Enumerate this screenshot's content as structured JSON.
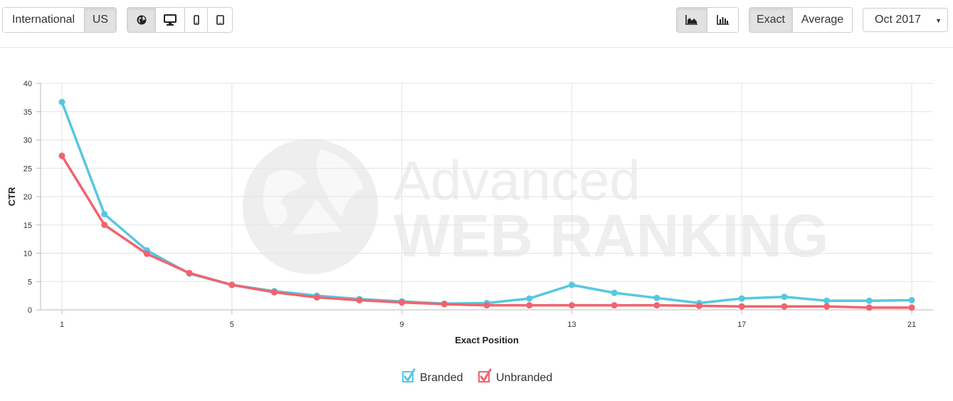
{
  "toolbar": {
    "region": {
      "international": "International",
      "us": "US",
      "selected": "US"
    },
    "devices": [
      "globe-icon",
      "desktop-icon",
      "mobile-icon",
      "tablet-icon"
    ],
    "device_selected": "globe-icon",
    "chart_types": [
      "area-chart-icon",
      "bar-chart-icon"
    ],
    "chart_type_selected": "area-chart-icon",
    "mode": {
      "exact": "Exact",
      "average": "Average",
      "selected": "Exact"
    },
    "period": "Oct 2017"
  },
  "watermark": {
    "line1": "Advanced",
    "line2": "WEB RANKING"
  },
  "chart_data": {
    "type": "line",
    "xlabel": "Exact Position",
    "ylabel": "CTR",
    "x": [
      1,
      2,
      3,
      4,
      5,
      6,
      7,
      8,
      9,
      10,
      11,
      12,
      13,
      14,
      15,
      16,
      17,
      18,
      19,
      20,
      21
    ],
    "xticks": [
      1,
      5,
      9,
      13,
      17,
      21
    ],
    "ylim": [
      0,
      40
    ],
    "yticks": [
      0,
      5,
      10,
      15,
      20,
      25,
      30,
      35,
      40
    ],
    "grid": true,
    "legend_position": "bottom",
    "series": [
      {
        "name": "Branded",
        "color": "#56c8e2",
        "values": [
          36.7,
          16.9,
          10.5,
          6.4,
          4.4,
          3.3,
          2.5,
          1.9,
          1.5,
          1.1,
          1.2,
          2.0,
          4.4,
          3.0,
          2.1,
          1.2,
          2.0,
          2.3,
          1.6,
          1.6,
          1.7
        ]
      },
      {
        "name": "Unbranded",
        "color": "#f0646e",
        "values": [
          27.2,
          15.0,
          9.9,
          6.5,
          4.4,
          3.1,
          2.2,
          1.7,
          1.3,
          1.0,
          0.8,
          0.8,
          0.8,
          0.8,
          0.8,
          0.7,
          0.6,
          0.6,
          0.6,
          0.4,
          0.4
        ]
      }
    ]
  }
}
